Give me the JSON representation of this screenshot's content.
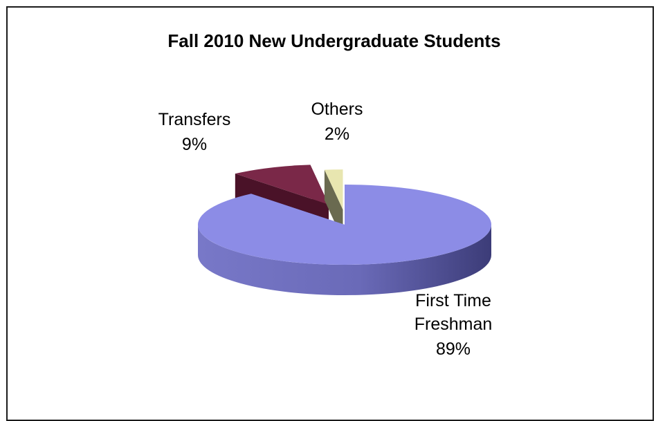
{
  "chart_data": {
    "type": "pie",
    "title": "Fall 2010 New Undergraduate Students",
    "slices": [
      {
        "label_lines": [
          "First Time",
          "Freshman"
        ],
        "value": 89,
        "value_label": "89%",
        "color": "#8c8ce6",
        "side_color": "#5a5aa8",
        "exploded": false
      },
      {
        "label_lines": [
          "Transfers"
        ],
        "value": 9,
        "value_label": "9%",
        "color": "#7a2848",
        "side_color": "#4a1228",
        "exploded": true
      },
      {
        "label_lines": [
          "Others"
        ],
        "value": 2,
        "value_label": "2%",
        "color": "#e8e6b0",
        "side_color": "#6a6a50",
        "exploded": true
      }
    ]
  }
}
